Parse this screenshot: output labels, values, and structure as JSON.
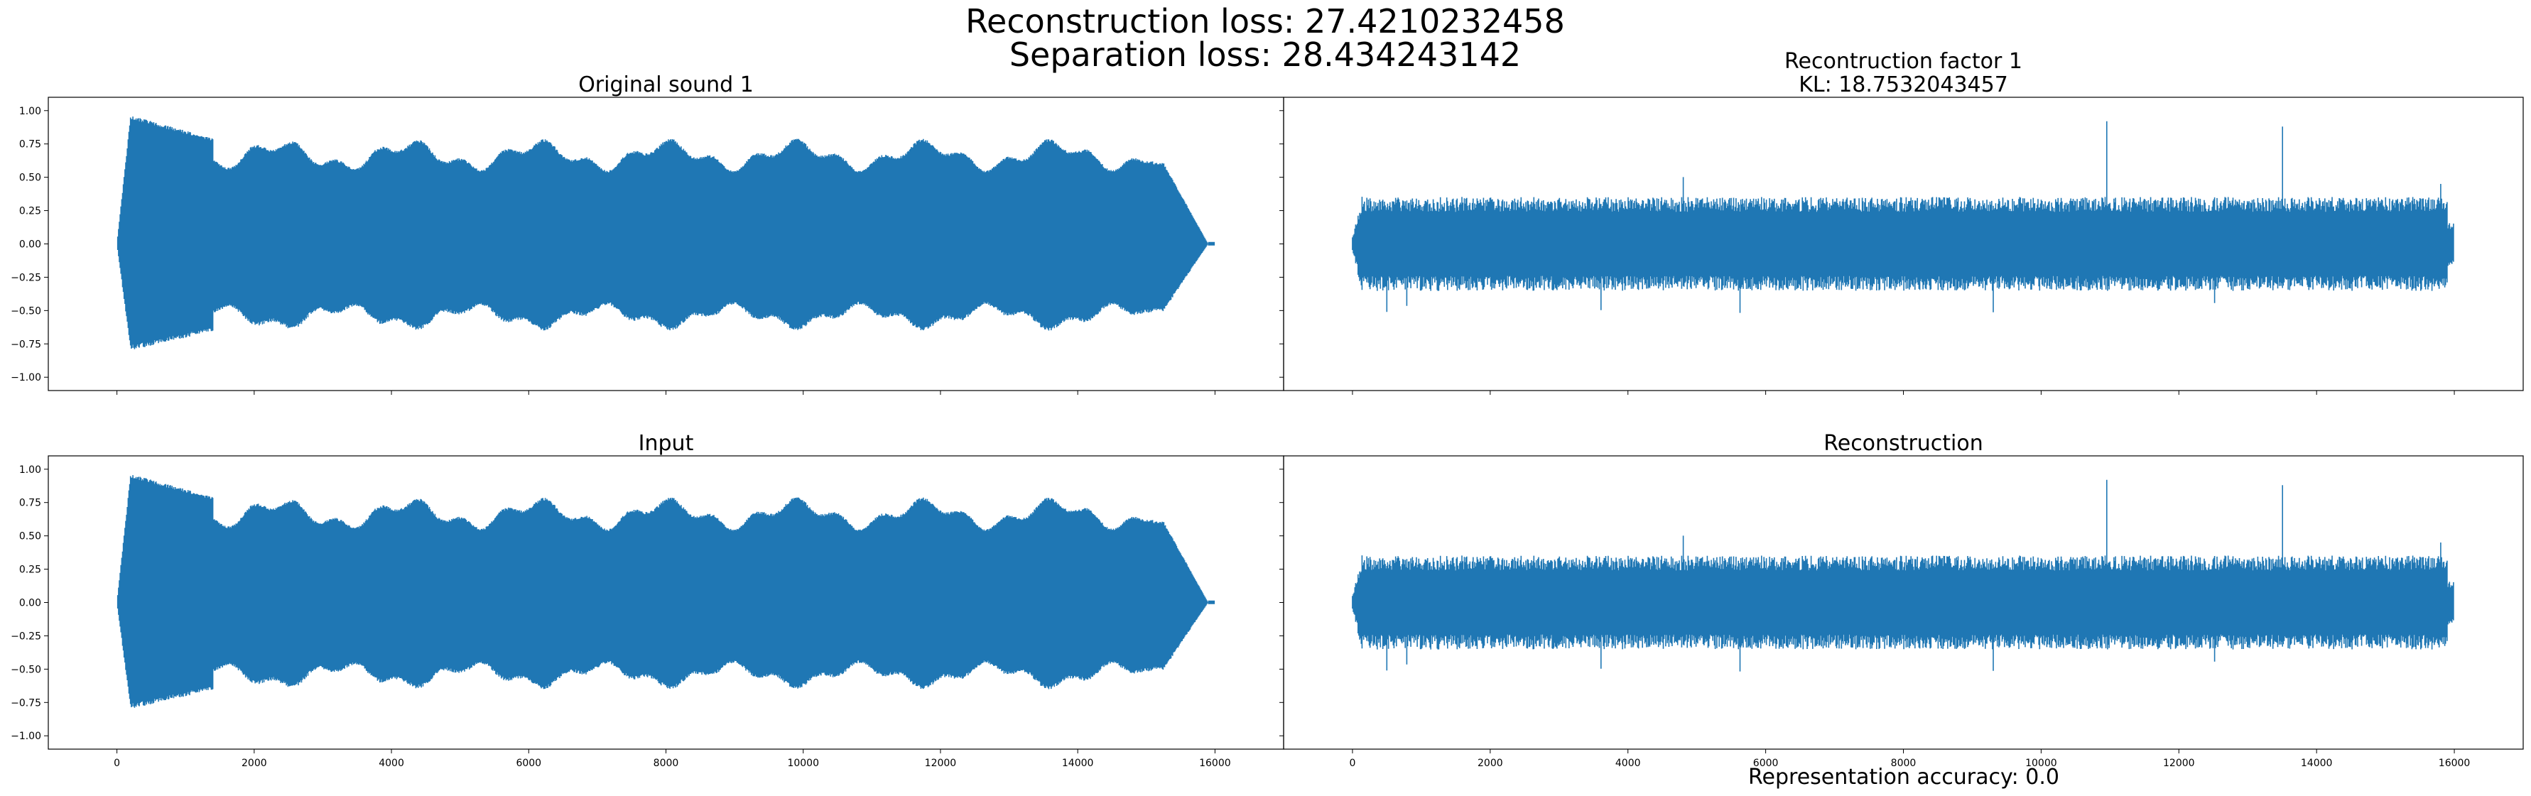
{
  "figure": {
    "suptitle_line1": "Reconstruction loss: 27.4210232458",
    "suptitle_line2": "Separation loss: 28.434243142",
    "footer": "Representation accuracy: 0.0",
    "line_color": "#1f77b4"
  },
  "chart_data": [
    {
      "type": "line",
      "title_lines": [
        "Original sound 1"
      ],
      "xlim": [
        -1000,
        17000
      ],
      "ylim": [
        -1.1,
        1.1
      ],
      "yticks": [
        -1.0,
        -0.75,
        -0.5,
        -0.25,
        0.0,
        0.25,
        0.5,
        0.75,
        1.0
      ],
      "ytick_labels": [
        "−1.00",
        "−0.75",
        "−0.50",
        "−0.25",
        "0.00",
        "0.25",
        "0.50",
        "0.75",
        "1.00"
      ],
      "xticks": [
        0,
        2000,
        4000,
        6000,
        8000,
        10000,
        12000,
        14000,
        16000
      ],
      "xtick_labels": [],
      "series": [
        {
          "signal": "tone",
          "n_samples": 16000,
          "y_range": [
            -0.62,
            0.97
          ]
        }
      ]
    },
    {
      "type": "line",
      "title_lines": [
        "Recontruction factor 1",
        "KL: 18.7532043457"
      ],
      "xlim": [
        -1000,
        17000
      ],
      "ylim": [
        -1.1,
        1.1
      ],
      "yticks": [
        -1.0,
        -0.75,
        -0.5,
        -0.25,
        0.0,
        0.25,
        0.5,
        0.75,
        1.0
      ],
      "ytick_labels": [],
      "xticks": [
        0,
        2000,
        4000,
        6000,
        8000,
        10000,
        12000,
        14000,
        16000
      ],
      "xtick_labels": [],
      "series": [
        {
          "signal": "noise",
          "n_samples": 16000,
          "y_range": [
            -0.55,
            0.92
          ]
        }
      ]
    },
    {
      "type": "line",
      "title_lines": [
        "Input"
      ],
      "xlim": [
        -1000,
        17000
      ],
      "ylim": [
        -1.1,
        1.1
      ],
      "yticks": [
        -1.0,
        -0.75,
        -0.5,
        -0.25,
        0.0,
        0.25,
        0.5,
        0.75,
        1.0
      ],
      "ytick_labels": [
        "−1.00",
        "−0.75",
        "−0.50",
        "−0.25",
        "0.00",
        "0.25",
        "0.50",
        "0.75",
        "1.00"
      ],
      "xticks": [
        0,
        2000,
        4000,
        6000,
        8000,
        10000,
        12000,
        14000,
        16000
      ],
      "xtick_labels": [
        "0",
        "2000",
        "4000",
        "6000",
        "8000",
        "10000",
        "12000",
        "14000",
        "16000"
      ],
      "series": [
        {
          "signal": "tone",
          "n_samples": 16000,
          "y_range": [
            -0.62,
            0.97
          ]
        }
      ]
    },
    {
      "type": "line",
      "title_lines": [
        "Reconstruction"
      ],
      "xlim": [
        -1000,
        17000
      ],
      "ylim": [
        -1.1,
        1.1
      ],
      "yticks": [
        -1.0,
        -0.75,
        -0.5,
        -0.25,
        0.0,
        0.25,
        0.5,
        0.75,
        1.0
      ],
      "ytick_labels": [],
      "xticks": [
        0,
        2000,
        4000,
        6000,
        8000,
        10000,
        12000,
        14000,
        16000
      ],
      "xtick_labels": [
        "0",
        "2000",
        "4000",
        "6000",
        "8000",
        "10000",
        "12000",
        "14000",
        "16000"
      ],
      "series": [
        {
          "signal": "noise",
          "n_samples": 16000,
          "y_range": [
            -0.55,
            0.92
          ]
        }
      ]
    }
  ]
}
